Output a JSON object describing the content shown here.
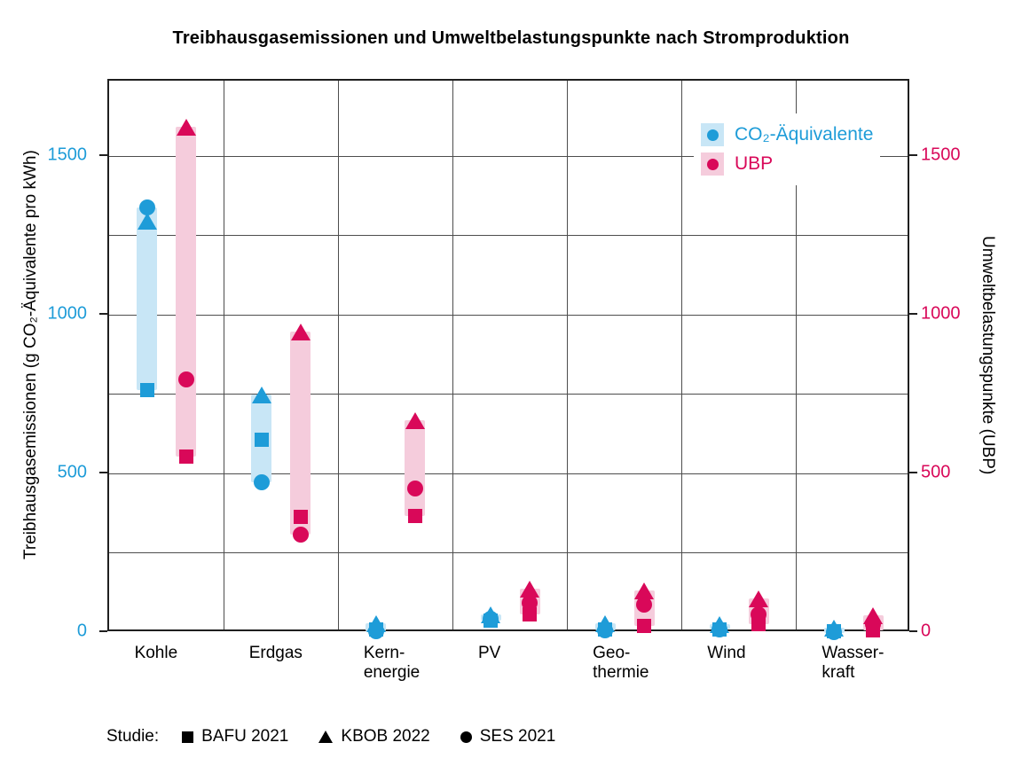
{
  "title": "Treibhausgasemissionen und Umweltbelastungspunkte nach Stromproduktion",
  "chart_data": {
    "type": "range-dot-plot",
    "y_max": 1740,
    "grid_step": 250,
    "left_axis": {
      "label": "Treibhausgasemissionen (g CO₂-Äquivalente pro kWh)",
      "ticks": [
        0,
        500,
        1000,
        1500
      ],
      "color": "#1E9CD8"
    },
    "right_axis": {
      "label": "Umweltbelastungspunkte (UBP)",
      "ticks": [
        0,
        500,
        1000,
        1500
      ],
      "color": "#D90859"
    },
    "series": [
      {
        "key": "co2",
        "name": "CO₂-Äquivalente",
        "color": "#1E9CD8",
        "light": "#C8E6F6"
      },
      {
        "key": "ubp",
        "name": "UBP",
        "color": "#D90859",
        "light": "#F5CCDC"
      }
    ],
    "studies": {
      "prefix": "Studie:",
      "items": [
        {
          "marker": "square",
          "label": "BAFU 2021"
        },
        {
          "marker": "triangle",
          "label": "KBOB 2022"
        },
        {
          "marker": "circle",
          "label": "SES 2021"
        }
      ]
    },
    "data": [
      {
        "category": "Kohle",
        "label_lines": [
          "Kohle"
        ],
        "co2": {
          "square": 765,
          "triangle": 1300,
          "circle": 1340
        },
        "ubp": {
          "square": 555,
          "triangle": 1595,
          "circle": 800
        }
      },
      {
        "category": "Erdgas",
        "label_lines": [
          "Erdgas"
        ],
        "co2": {
          "square": 610,
          "triangle": 750,
          "circle": 475
        },
        "ubp": {
          "square": 365,
          "triangle": 950,
          "circle": 310
        }
      },
      {
        "category": "Kernenergie",
        "label_lines": [
          "Kern-",
          "energie"
        ],
        "co2": {
          "square": 12,
          "triangle": 30,
          "circle": 5
        },
        "ubp": {
          "square": 370,
          "triangle": 670,
          "circle": 455
        }
      },
      {
        "category": "PV",
        "label_lines": [
          "PV"
        ],
        "co2": {
          "square": 40,
          "triangle": 60,
          "circle": 45
        },
        "ubp": {
          "square": 60,
          "triangle": 140,
          "circle": 95
        }
      },
      {
        "category": "Geothermie",
        "label_lines": [
          "Geo-",
          "thermie"
        ],
        "co2": {
          "square": 12,
          "triangle": 32,
          "circle": 8
        },
        "ubp": {
          "square": 22,
          "triangle": 135,
          "circle": 90
        }
      },
      {
        "category": "Wind",
        "label_lines": [
          "Wind"
        ],
        "co2": {
          "square": 12,
          "triangle": 28,
          "circle": 10
        },
        "ubp": {
          "square": 28,
          "triangle": 110,
          "circle": 58
        }
      },
      {
        "category": "Wasserkraft",
        "label_lines": [
          "Wasser-",
          "kraft"
        ],
        "co2": {
          "square": 6,
          "triangle": 16,
          "circle": 4
        },
        "ubp": {
          "square": 8,
          "triangle": 55,
          "circle": 28
        }
      }
    ]
  }
}
